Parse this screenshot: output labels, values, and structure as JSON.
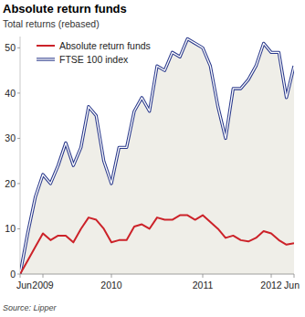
{
  "chart_data": {
    "type": "line",
    "title": "Absolute return funds",
    "subtitle": "Total returns (rebased)",
    "source": "Source: Lipper",
    "categories": [
      "Jun",
      null,
      null,
      "2009",
      null,
      null,
      null,
      null,
      null,
      null,
      null,
      null,
      "2010",
      null,
      null,
      null,
      null,
      null,
      null,
      null,
      null,
      null,
      null,
      null,
      "2011",
      null,
      null,
      null,
      null,
      null,
      null,
      null,
      null,
      "2012",
      null,
      null,
      "Jun"
    ],
    "series": [
      {
        "name": "Absolute return funds",
        "color": "#cc2229",
        "type": "line",
        "values": [
          0,
          3,
          6,
          9,
          7.5,
          8.5,
          8.5,
          7,
          10,
          12.5,
          12,
          10,
          7,
          7.5,
          7.5,
          10.5,
          11,
          10,
          12.5,
          12,
          12,
          13,
          13,
          12,
          13,
          11.5,
          10,
          8,
          8.5,
          7.5,
          7.2,
          8,
          9.5,
          9,
          7.5,
          6.5,
          6.8
        ]
      },
      {
        "name": "FTSE 100 index",
        "color": "#2b3a8c",
        "type": "area",
        "values": [
          0,
          9,
          17,
          22,
          20,
          24,
          29,
          24,
          28,
          37,
          35,
          25,
          20,
          28,
          28,
          36,
          39,
          36,
          46,
          45,
          49,
          48,
          52,
          51,
          50,
          46,
          37,
          30,
          41,
          41,
          43,
          46,
          51,
          49,
          49,
          39,
          46
        ]
      }
    ],
    "ylim": [
      0,
      52.5
    ],
    "yticks": [
      0,
      10,
      20,
      30,
      40,
      50
    ],
    "grid": false,
    "legend": "top-left"
  }
}
